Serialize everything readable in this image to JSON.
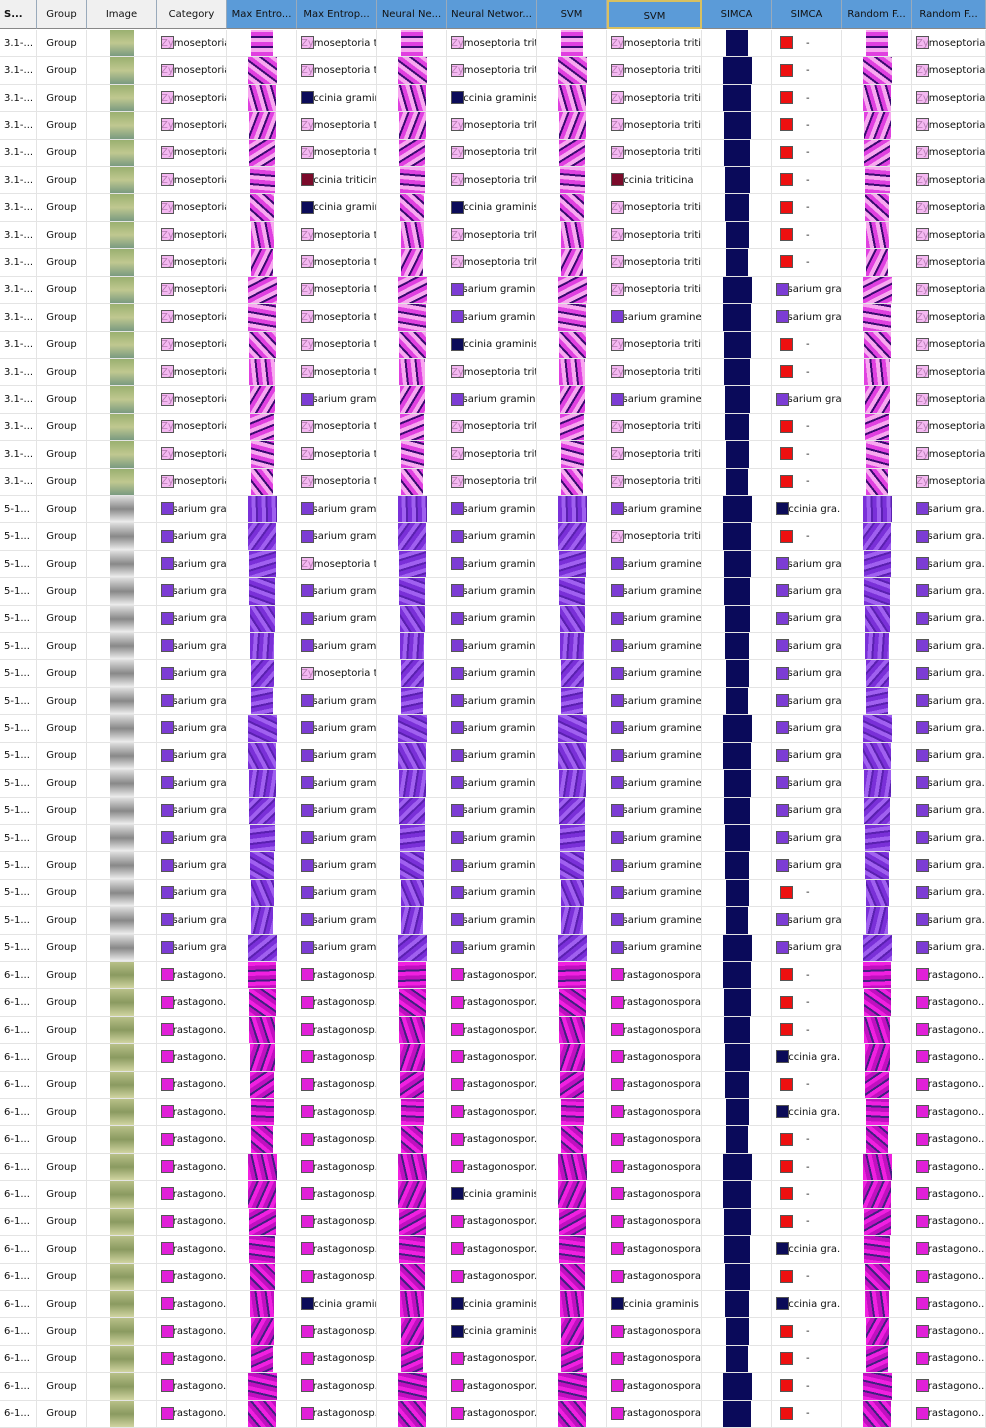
{
  "table": {
    "columns": [
      "S...",
      "Group",
      "Image",
      "Category",
      "Max Entro...",
      "Max Entrop...",
      "Neural Ne...",
      "Neural Networ...",
      "SVM",
      "SVM",
      "SIMCA",
      "SIMCA",
      "Random F...",
      "Random F..."
    ],
    "rows": [
      [
        "3.1-...",
        "Group",
        "Zymoseptoria...",
        "Zymoseptoria t...",
        "Zymoseptoria tritici",
        "Zymoseptoria tritici",
        "-",
        "Zymoseptoria..."
      ],
      [
        "3.1-...",
        "Group",
        "Zymoseptoria...",
        "Zymoseptoria t...",
        "Zymoseptoria tritici",
        "Zymoseptoria tritici",
        "-",
        "Zymoseptoria..."
      ],
      [
        "3.1-...",
        "Group",
        "Zymoseptoria...",
        "Puccinia graminis",
        "Puccinia graminis",
        "Zymoseptoria tritici",
        "-",
        "Zymoseptoria..."
      ],
      [
        "3.1-...",
        "Group",
        "Zymoseptoria...",
        "Zymoseptoria t...",
        "Zymoseptoria tritici",
        "Zymoseptoria tritici",
        "-",
        "Zymoseptoria..."
      ],
      [
        "3.1-...",
        "Group",
        "Zymoseptoria...",
        "Zymoseptoria t...",
        "Zymoseptoria tritici",
        "Zymoseptoria tritici",
        "-",
        "Zymoseptoria..."
      ],
      [
        "3.1-...",
        "Group",
        "Zymoseptoria...",
        "Puccinia triticina",
        "Zymoseptoria tritici",
        "Puccinia triticina",
        "-",
        "Zymoseptoria..."
      ],
      [
        "3.1-...",
        "Group",
        "Zymoseptoria...",
        "Puccinia graminis",
        "Puccinia graminis",
        "Zymoseptoria tritici",
        "-",
        "Zymoseptoria..."
      ],
      [
        "3.1-...",
        "Group",
        "Zymoseptoria...",
        "Zymoseptoria t...",
        "Zymoseptoria tritici",
        "Zymoseptoria tritici",
        "-",
        "Zymoseptoria..."
      ],
      [
        "3.1-...",
        "Group",
        "Zymoseptoria...",
        "Zymoseptoria t...",
        "Zymoseptoria tritici",
        "Zymoseptoria tritici",
        "-",
        "Zymoseptoria..."
      ],
      [
        "3.1-...",
        "Group",
        "Zymoseptoria...",
        "Zymoseptoria t...",
        "Fusarium gramin...",
        "Zymoseptoria tritici",
        "Fusarium gra...",
        "Zymoseptoria..."
      ],
      [
        "3.1-...",
        "Group",
        "Zymoseptoria...",
        "Zymoseptoria t...",
        "Fusarium gramin...",
        "Fusarium gramine...",
        "Fusarium gra...",
        "Zymoseptoria..."
      ],
      [
        "3.1-...",
        "Group",
        "Zymoseptoria...",
        "Zymoseptoria t...",
        "Puccinia graminis",
        "Zymoseptoria tritici",
        "-",
        "Zymoseptoria..."
      ],
      [
        "3.1-...",
        "Group",
        "Zymoseptoria...",
        "Zymoseptoria t...",
        "Zymoseptoria tritici",
        "Zymoseptoria tritici",
        "-",
        "Zymoseptoria..."
      ],
      [
        "3.1-...",
        "Group",
        "Zymoseptoria...",
        "Fusarium gram...",
        "Fusarium gramin...",
        "Fusarium gramine...",
        "Fusarium gra...",
        "Zymoseptoria..."
      ],
      [
        "3.1-...",
        "Group",
        "Zymoseptoria...",
        "Zymoseptoria t...",
        "Zymoseptoria tritici",
        "Zymoseptoria tritici",
        "-",
        "Zymoseptoria..."
      ],
      [
        "3.1-...",
        "Group",
        "Zymoseptoria...",
        "Zymoseptoria t...",
        "Zymoseptoria tritici",
        "Zymoseptoria tritici",
        "-",
        "Zymoseptoria..."
      ],
      [
        "3.1-...",
        "Group",
        "Zymoseptoria...",
        "Zymoseptoria t...",
        "Zymoseptoria tritici",
        "Zymoseptoria tritici",
        "-",
        "Zymoseptoria..."
      ],
      [
        "5-1...",
        "Group",
        "Fusarium gra...",
        "Fusarium gram...",
        "Fusarium gramin...",
        "Fusarium gramine...",
        "Puccinia gra...",
        "Fusarium gra..."
      ],
      [
        "5-1...",
        "Group",
        "Fusarium gra...",
        "Fusarium gram...",
        "Fusarium gramin...",
        "Zymoseptoria tritici",
        "-",
        "Fusarium gra..."
      ],
      [
        "5-1...",
        "Group",
        "Fusarium gra...",
        "Zymoseptoria t...",
        "Fusarium gramin...",
        "Fusarium gramine...",
        "Fusarium gra...",
        "Fusarium gra..."
      ],
      [
        "5-1...",
        "Group",
        "Fusarium gra...",
        "Fusarium gram...",
        "Fusarium gramin...",
        "Fusarium gramine...",
        "Fusarium gra...",
        "Fusarium gra..."
      ],
      [
        "5-1...",
        "Group",
        "Fusarium gra...",
        "Fusarium gram...",
        "Fusarium gramin...",
        "Fusarium gramine...",
        "Fusarium gra...",
        "Fusarium gra..."
      ],
      [
        "5-1...",
        "Group",
        "Fusarium gra...",
        "Fusarium gram...",
        "Fusarium gramin...",
        "Fusarium gramine...",
        "Fusarium gra...",
        "Fusarium gra..."
      ],
      [
        "5-1...",
        "Group",
        "Fusarium gra...",
        "Zymoseptoria t...",
        "Fusarium gramin...",
        "Fusarium gramine...",
        "Fusarium gra...",
        "Fusarium gra..."
      ],
      [
        "5-1...",
        "Group",
        "Fusarium gra...",
        "Fusarium gram...",
        "Fusarium gramin...",
        "Fusarium gramine...",
        "Fusarium gra...",
        "Fusarium gra..."
      ],
      [
        "5-1...",
        "Group",
        "Fusarium gra...",
        "Fusarium gram...",
        "Fusarium gramin...",
        "Fusarium gramine...",
        "Fusarium gra...",
        "Fusarium gra..."
      ],
      [
        "5-1...",
        "Group",
        "Fusarium gra...",
        "Fusarium gram...",
        "Fusarium gramin...",
        "Fusarium gramine...",
        "Fusarium gra...",
        "Fusarium gra..."
      ],
      [
        "5-1...",
        "Group",
        "Fusarium gra...",
        "Fusarium gram...",
        "Fusarium gramin...",
        "Fusarium gramine...",
        "Fusarium gra...",
        "Fusarium gra..."
      ],
      [
        "5-1...",
        "Group",
        "Fusarium gra...",
        "Fusarium gram...",
        "Fusarium gramin...",
        "Fusarium gramine...",
        "Fusarium gra...",
        "Fusarium gra..."
      ],
      [
        "5-1...",
        "Group",
        "Fusarium gra...",
        "Fusarium gram...",
        "Fusarium gramin...",
        "Fusarium gramine...",
        "Fusarium gra...",
        "Fusarium gra..."
      ],
      [
        "5-1...",
        "Group",
        "Fusarium gra...",
        "Fusarium gram...",
        "Fusarium gramin...",
        "Fusarium gramine...",
        "Fusarium gra...",
        "Fusarium gra..."
      ],
      [
        "5-1...",
        "Group",
        "Fusarium gra...",
        "Fusarium gram...",
        "Fusarium gramin...",
        "Fusarium gramine...",
        "-",
        "Fusarium gra..."
      ],
      [
        "5-1...",
        "Group",
        "Fusarium gra...",
        "Fusarium gram...",
        "Fusarium gramin...",
        "Fusarium gramine...",
        "Fusarium gra...",
        "Fusarium gra..."
      ],
      [
        "5-1...",
        "Group",
        "Fusarium gra...",
        "Fusarium gram...",
        "Fusarium gramin...",
        "Fusarium gramine...",
        "Fusarium gra...",
        "Fusarium gra..."
      ],
      [
        "6-1...",
        "Group",
        "Parastagono...",
        "Parastagonosp...",
        "Parastagonospor...",
        "Parastagonospora ...",
        "-",
        "Parastagono..."
      ],
      [
        "6-1...",
        "Group",
        "Parastagono...",
        "Parastagonosp...",
        "Parastagonospor...",
        "Parastagonospora ...",
        "-",
        "Parastagono..."
      ],
      [
        "6-1...",
        "Group",
        "Parastagono...",
        "Parastagonosp...",
        "Parastagonospor...",
        "Parastagonospora ...",
        "-",
        "Parastagono..."
      ],
      [
        "6-1...",
        "Group",
        "Parastagono...",
        "Parastagonosp...",
        "Parastagonospor...",
        "Parastagonospora ...",
        "Puccinia gra...",
        "Parastagono..."
      ],
      [
        "6-1...",
        "Group",
        "Parastagono...",
        "Parastagonosp...",
        "Parastagonospor...",
        "Parastagonospora ...",
        "-",
        "Parastagono..."
      ],
      [
        "6-1...",
        "Group",
        "Parastagono...",
        "Parastagonosp...",
        "Parastagonospor...",
        "Parastagonospora ...",
        "Puccinia gra...",
        "Parastagono..."
      ],
      [
        "6-1...",
        "Group",
        "Parastagono...",
        "Parastagonosp...",
        "Parastagonospor...",
        "Parastagonospora ...",
        "-",
        "Parastagono..."
      ],
      [
        "6-1...",
        "Group",
        "Parastagono...",
        "Parastagonosp...",
        "Parastagonospor...",
        "Parastagonospora ...",
        "-",
        "Parastagono..."
      ],
      [
        "6-1...",
        "Group",
        "Parastagono...",
        "Parastagonosp...",
        "Puccinia graminis",
        "Parastagonospora ...",
        "-",
        "Parastagono..."
      ],
      [
        "6-1...",
        "Group",
        "Parastagono...",
        "Parastagonosp...",
        "Parastagonospor...",
        "Parastagonospora ...",
        "-",
        "Parastagono..."
      ],
      [
        "6-1...",
        "Group",
        "Parastagono...",
        "Parastagonosp...",
        "Parastagonospor...",
        "Parastagonospora ...",
        "Puccinia gra...",
        "Parastagono..."
      ],
      [
        "6-1...",
        "Group",
        "Parastagono...",
        "Parastagonosp...",
        "Parastagonospor...",
        "Parastagonospora ...",
        "-",
        "Parastagono..."
      ],
      [
        "6-1...",
        "Group",
        "Parastagono...",
        "Puccinia graminis",
        "Puccinia graminis",
        "Puccinia graminis",
        "Puccinia gra...",
        "Parastagono..."
      ],
      [
        "6-1...",
        "Group",
        "Parastagono...",
        "Parastagonosp...",
        "Puccinia graminis",
        "Parastagonospora ...",
        "-",
        "Parastagono..."
      ],
      [
        "6-1...",
        "Group",
        "Parastagono...",
        "Parastagonosp...",
        "Parastagonospor...",
        "Parastagonospora ...",
        "-",
        "Parastagono..."
      ],
      [
        "6-1...",
        "Group",
        "Parastagono...",
        "Parastagonosp...",
        "Parastagonospor...",
        "Parastagonospora ...",
        "-",
        "Parastagono..."
      ],
      [
        "6-1...",
        "Group",
        "Parastagono...",
        "Parastagonosp...",
        "Parastagonospor...",
        "Parastagonospora ...",
        "-",
        "Parastagono..."
      ]
    ]
  }
}
